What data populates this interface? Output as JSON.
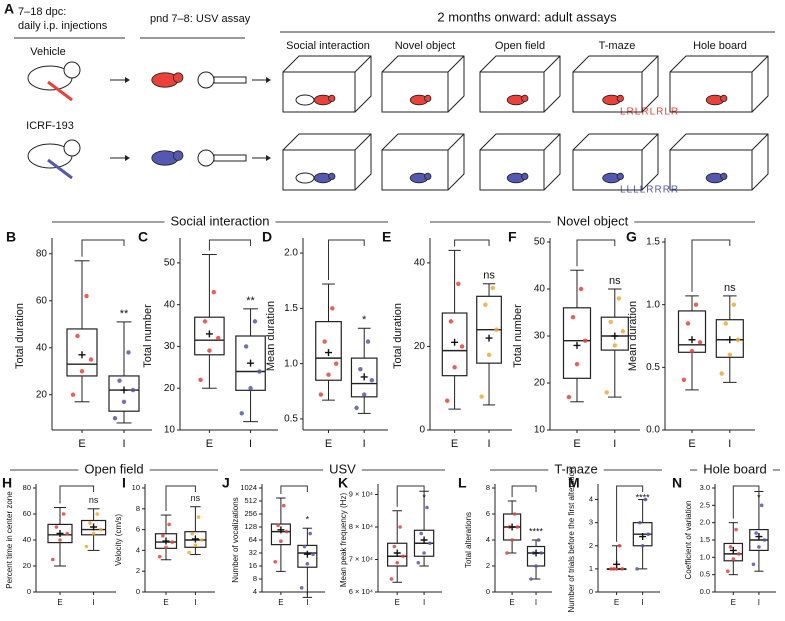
{
  "panel_a": {
    "label": "A",
    "injection": [
      "7–18 dpc:",
      "daily i.p. injections"
    ],
    "usv": "pnd 7–8: USV assay",
    "adult": "2 months onward: adult assays",
    "groups": [
      "Vehicle",
      "ICRF-193"
    ],
    "assays": [
      "Social interaction",
      "Novel object",
      "Open field",
      "T-maze",
      "Hole board"
    ],
    "tmaze": [
      "LRLRLRLR",
      "LLLLRRRR"
    ]
  },
  "sections": [
    "Social interaction",
    "Novel object",
    "Open field",
    "USV",
    "T-maze",
    "Hole board"
  ],
  "chart_data": [
    {
      "type": "box",
      "letter": "B",
      "ylabel": "Total duration",
      "ylim": [
        5,
        85
      ],
      "yticks": [
        20,
        40,
        60,
        80
      ],
      "annotation": "**",
      "series": [
        {
          "name": "E",
          "color": "#e8423a",
          "min": 17,
          "q1": 28,
          "median": 33,
          "q3": 48,
          "max": 77,
          "mean": 37,
          "points": [
            20,
            30,
            35,
            45,
            62
          ]
        },
        {
          "name": "I",
          "color": "#5458b0",
          "min": 8,
          "q1": 13,
          "median": 22,
          "q3": 28,
          "max": 51,
          "mean": 22,
          "points": [
            10,
            17,
            22,
            26,
            38
          ]
        }
      ]
    },
    {
      "type": "box",
      "letter": "C",
      "ylabel": "Total number",
      "ylim": [
        10,
        55
      ],
      "yticks": [
        10,
        20,
        30,
        40,
        50
      ],
      "annotation": "**",
      "series": [
        {
          "name": "E",
          "color": "#e8423a",
          "min": 20,
          "q1": 28,
          "median": 31.5,
          "q3": 37,
          "max": 52,
          "mean": 33,
          "points": [
            22,
            29,
            32,
            36,
            43
          ]
        },
        {
          "name": "I",
          "color": "#5458b0",
          "min": 12,
          "q1": 19.5,
          "median": 24,
          "q3": 32.5,
          "max": 39,
          "mean": 26,
          "points": [
            14,
            20,
            24,
            30,
            36
          ]
        }
      ]
    },
    {
      "type": "box",
      "letter": "D",
      "ylabel": "Mean duration",
      "ylim": [
        0.4,
        2.1
      ],
      "yticks": [
        0.5,
        {
          "value": 1,
          "label": "1.0"
        },
        1.5,
        {
          "value": 2,
          "label": "2.0"
        }
      ],
      "annotation": "*",
      "series": [
        {
          "name": "E",
          "color": "#e8423a",
          "min": 0.67,
          "q1": 0.85,
          "median": 1.05,
          "q3": 1.38,
          "max": 1.72,
          "mean": 1.1,
          "points": [
            0.72,
            0.9,
            1.0,
            1.2,
            1.5
          ]
        },
        {
          "name": "I",
          "color": "#5458b0",
          "min": 0.55,
          "q1": 0.7,
          "median": 0.82,
          "q3": 1.05,
          "max": 1.32,
          "mean": 0.88,
          "points": [
            0.6,
            0.72,
            0.85,
            0.95,
            1.2
          ]
        }
      ]
    },
    {
      "type": "box",
      "letter": "E",
      "ylabel": "Total duration",
      "ylim": [
        0,
        45
      ],
      "yticks": [
        0,
        20,
        40
      ],
      "annotation": "ns",
      "series": [
        {
          "name": "E",
          "color": "#e8423a",
          "min": 5,
          "q1": 13,
          "median": 19,
          "q3": 28,
          "max": 43,
          "mean": 21,
          "points": [
            7,
            15,
            20,
            26,
            35
          ]
        },
        {
          "name": "I",
          "color": "#f0a830",
          "min": 6,
          "q1": 16,
          "median": 24,
          "q3": 32,
          "max": 35,
          "mean": 22,
          "points": [
            8,
            18,
            24,
            30,
            34
          ]
        }
      ]
    },
    {
      "type": "box",
      "letter": "F",
      "ylabel": "Total number",
      "ylim": [
        10,
        50
      ],
      "yticks": [
        10,
        20,
        30,
        40,
        50
      ],
      "annotation": "ns",
      "series": [
        {
          "name": "E",
          "color": "#e8423a",
          "min": 16,
          "q1": 21,
          "median": 29,
          "q3": 36,
          "max": 44,
          "mean": 28,
          "points": [
            17,
            24,
            29,
            34,
            40
          ]
        },
        {
          "name": "I",
          "color": "#f0a830",
          "min": 17,
          "q1": 27,
          "median": 30,
          "q3": 34,
          "max": 40,
          "mean": 30,
          "points": [
            18,
            28,
            31,
            33,
            38
          ]
        }
      ]
    },
    {
      "type": "box",
      "letter": "G",
      "ylabel": "Mean duration",
      "ylim": [
        0,
        1.5
      ],
      "yticks": [
        {
          "value": 0,
          "label": "0.0"
        },
        0.5,
        {
          "value": 1,
          "label": "1.0"
        },
        1.5
      ],
      "annotation": "ns",
      "series": [
        {
          "name": "E",
          "color": "#e8423a",
          "min": 0.32,
          "q1": 0.62,
          "median": 0.68,
          "q3": 0.95,
          "max": 1.07,
          "mean": 0.72,
          "points": [
            0.4,
            0.63,
            0.7,
            0.85,
            1.0
          ]
        },
        {
          "name": "I",
          "color": "#f0a830",
          "min": 0.38,
          "q1": 0.58,
          "median": 0.72,
          "q3": 0.88,
          "max": 1.07,
          "mean": 0.72,
          "points": [
            0.45,
            0.6,
            0.72,
            0.85,
            1.0
          ]
        }
      ]
    },
    {
      "type": "box",
      "letter": "H",
      "ylabel": "Percent time in center zone",
      "ylim": [
        0,
        80
      ],
      "yticks": [
        0,
        20,
        40,
        60,
        80
      ],
      "annotation": "ns",
      "series": [
        {
          "name": "E",
          "color": "#e8423a",
          "min": 20,
          "q1": 38,
          "median": 44,
          "q3": 52,
          "max": 65,
          "mean": 45,
          "points": [
            25,
            40,
            45,
            50,
            60
          ]
        },
        {
          "name": "I",
          "color": "#f0a830",
          "min": 32,
          "q1": 44,
          "median": 48,
          "q3": 55,
          "max": 64,
          "mean": 50,
          "points": [
            35,
            45,
            48,
            53,
            60
          ]
        }
      ]
    },
    {
      "type": "box",
      "letter": "I",
      "ylabel": "Velocity (cm/s)",
      "ylim": [
        0,
        10
      ],
      "yticks": [
        0,
        2,
        4,
        6,
        8,
        10
      ],
      "annotation": "ns",
      "series": [
        {
          "name": "E",
          "color": "#e8423a",
          "min": 3.1,
          "q1": 4.2,
          "median": 4.8,
          "q3": 5.6,
          "max": 7.4,
          "mean": 4.9,
          "points": [
            3.4,
            4.3,
            4.8,
            5.4,
            6.5
          ]
        },
        {
          "name": "I",
          "color": "#f0a830",
          "min": 3.6,
          "q1": 4.3,
          "median": 5,
          "q3": 5.8,
          "max": 8.2,
          "mean": 5.1,
          "points": [
            3.8,
            4.5,
            5,
            5.6,
            7.2
          ]
        }
      ]
    },
    {
      "type": "box",
      "letter": "J",
      "ylabel": "Number of vocalizations",
      "yscale": "log",
      "ylim": [
        4,
        1024
      ],
      "yticks": [
        4,
        8,
        16,
        32,
        64,
        128,
        256,
        512,
        1024
      ],
      "annotation": "*",
      "series": [
        {
          "name": "E",
          "color": "#e8423a",
          "min": 12,
          "q1": 50,
          "median": 100,
          "q3": 150,
          "max": 600,
          "mean": 110,
          "points": [
            20,
            60,
            100,
            140,
            400
          ]
        },
        {
          "name": "I",
          "color": "#5458b0",
          "min": 3,
          "q1": 15,
          "median": 32,
          "q3": 48,
          "max": 120,
          "mean": 30,
          "points": [
            5,
            18,
            30,
            45,
            90
          ]
        }
      ]
    },
    {
      "type": "box",
      "letter": "K",
      "ylabel": "Mean peak frequency (Hz)",
      "ylim": [
        60000,
        92000
      ],
      "yticks": [
        {
          "value": 60000,
          "label": "6 × 10⁴"
        },
        {
          "value": 70000,
          "label": "7 × 10⁴"
        },
        {
          "value": 80000,
          "label": "8 × 10⁴"
        },
        {
          "value": 90000,
          "label": "9 × 10⁴"
        }
      ],
      "annotation": "*",
      "series": [
        {
          "name": "E",
          "color": "#e8423a",
          "min": 63000,
          "q1": 68000,
          "median": 71000,
          "q3": 75000,
          "max": 85000,
          "mean": 72000,
          "points": [
            64000,
            69000,
            71000,
            74000,
            80000
          ]
        },
        {
          "name": "I",
          "color": "#5458b0",
          "min": 68000,
          "q1": 71000,
          "median": 75000,
          "q3": 79000,
          "max": 91000,
          "mean": 76000,
          "points": [
            69000,
            72000,
            75000,
            78000,
            86000
          ]
        }
      ]
    },
    {
      "type": "box",
      "letter": "L",
      "ylabel": "Total alterations",
      "ylim": [
        0,
        8
      ],
      "yticks": [
        0,
        2,
        4,
        6,
        8
      ],
      "annotation": "****",
      "series": [
        {
          "name": "E",
          "color": "#e8423a",
          "min": 3,
          "q1": 4,
          "median": 5,
          "q3": 6,
          "max": 7,
          "mean": 5,
          "points": [
            3,
            4,
            5,
            5,
            6
          ]
        },
        {
          "name": "I",
          "color": "#5458b0",
          "min": 1,
          "q1": 2,
          "median": 3,
          "q3": 3.5,
          "max": 4,
          "mean": 3,
          "points": [
            1,
            2,
            3,
            3,
            4
          ]
        }
      ]
    },
    {
      "type": "box",
      "letter": "M",
      "ylabel": "Number of trials before the first alteration",
      "ylim": [
        0,
        4.5
      ],
      "yticks": [
        0,
        1,
        2,
        3,
        4
      ],
      "annotation": "****",
      "series": [
        {
          "name": "E",
          "color": "#e8423a",
          "min": 1,
          "q1": 1,
          "median": 1,
          "q3": 1,
          "max": 2,
          "mean": 1.2,
          "points": [
            1,
            1,
            1,
            1,
            2
          ]
        },
        {
          "name": "I",
          "color": "#5458b0",
          "min": 1,
          "q1": 2,
          "median": 2.5,
          "q3": 3,
          "max": 4,
          "mean": 2.4,
          "points": [
            1,
            2,
            2.5,
            3,
            4
          ]
        }
      ]
    },
    {
      "type": "box",
      "letter": "N",
      "ylabel": "Coefficient of variation",
      "ylim": [
        0,
        3
      ],
      "yticks": [
        {
          "value": 0,
          "label": "0.0"
        },
        0.5,
        {
          "value": 1,
          "label": "1.0"
        },
        1.5,
        {
          "value": 2,
          "label": "2.0"
        },
        2.5,
        {
          "value": 3,
          "label": "3.0"
        }
      ],
      "annotation": "*",
      "series": [
        {
          "name": "E",
          "color": "#e8423a",
          "min": 0.5,
          "q1": 0.9,
          "median": 1.1,
          "q3": 1.4,
          "max": 2,
          "mean": 1.2,
          "points": [
            0.6,
            0.95,
            1.1,
            1.3,
            1.8
          ]
        },
        {
          "name": "I",
          "color": "#5458b0",
          "min": 0.6,
          "q1": 1.2,
          "median": 1.5,
          "q3": 1.8,
          "max": 2.9,
          "mean": 1.6,
          "points": [
            0.8,
            1.3,
            1.5,
            1.7,
            2.5
          ]
        }
      ]
    }
  ]
}
